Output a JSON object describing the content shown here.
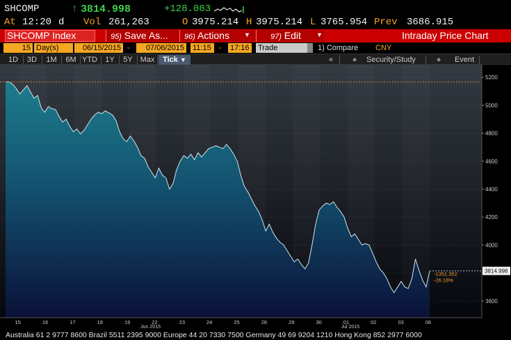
{
  "header": {
    "ticker": "SHCOMP",
    "arrow": "↑",
    "last": "3814.998",
    "change": "+128.083",
    "at_label": "At",
    "time": "12:20",
    "unit": "d",
    "vol_label": "Vol",
    "volume": "261,263",
    "open_label": "O",
    "open": "3975.214",
    "high_label": "H",
    "high": "3975.214",
    "low_label": "L",
    "low": "3765.954",
    "prev_label": "Prev",
    "prev": "3686.915"
  },
  "toolbar": {
    "security": "SHCOMP Index",
    "save_num": "95)",
    "save_label": "Save As...",
    "actions_num": "96)",
    "actions_label": "Actions",
    "edit_num": "97)",
    "edit_label": "Edit",
    "title": "Intraday Price Chart"
  },
  "params": {
    "period_count": "15",
    "period_unit": "Day(s)",
    "start_date": "06/15/2015",
    "dash": "-",
    "end_date": "07/06/2015",
    "start_time": "11:15",
    "end_time": "17:16",
    "market_field": "Trade",
    "compare_label": "1) Compare",
    "currency": "CNY"
  },
  "periods": {
    "items": [
      "1D",
      "3D",
      "1M",
      "6M",
      "YTD",
      "1Y",
      "5Y",
      "Max"
    ],
    "selected": "Tick",
    "collapse": "«",
    "security_study": "Security/Study",
    "event": "Event"
  },
  "colors": {
    "accent_red": "#cc0000",
    "accent_orange": "#f5a623",
    "area_top": "#1d7c8c",
    "area_bottom": "#0a1138",
    "price_tag": "#f2f2f2",
    "negative": "#ff9933"
  },
  "chart_data": {
    "type": "area",
    "y_ticks": [
      "5200",
      "5000",
      "4800",
      "4600",
      "4400",
      "4200",
      "4000",
      "3800",
      "3600"
    ],
    "ylim": [
      3480,
      5290
    ],
    "x_ticks": [
      "15",
      "16",
      "17",
      "18",
      "19",
      "22",
      "23",
      "24",
      "25",
      "26",
      "29",
      "30",
      "01",
      "02",
      "03",
      "06"
    ],
    "x_month_labels": [
      "Jun 2015",
      "Jul 2015"
    ],
    "reference_level": 5166,
    "last_price": "3814.998",
    "change_abs": "-1351.352",
    "change_pct": "-26.16%",
    "series": [
      {
        "values": [
          5166,
          5168,
          5150,
          5120,
          5080,
          5110,
          5140,
          5095,
          5050,
          5070,
          4980,
          4950,
          4990,
          4975,
          4970,
          4920,
          4880,
          4900,
          4850,
          4810,
          4830,
          4795,
          4820,
          4860,
          4900,
          4930,
          4950,
          4940,
          4960,
          4945,
          4930,
          4890,
          4810,
          4760,
          4740,
          4780,
          4745,
          4700,
          4640,
          4620,
          4560,
          4520,
          4480,
          4550,
          4500,
          4480,
          4400,
          4440,
          4540,
          4600,
          4640,
          4620,
          4650,
          4610,
          4660,
          4630,
          4660,
          4690,
          4700,
          4710,
          4700,
          4690,
          4720,
          4690,
          4650,
          4600,
          4500,
          4420,
          4380,
          4330,
          4280,
          4240,
          4180,
          4100,
          4150,
          4090,
          4050,
          4020,
          4000,
          3960,
          3920,
          3880,
          3900,
          3860,
          3830,
          3870,
          4000,
          4150,
          4250,
          4280,
          4300,
          4290,
          4310,
          4270,
          4240,
          4200,
          4120,
          4060,
          4080,
          4040,
          4000,
          4010,
          4000,
          3940,
          3880,
          3830,
          3800,
          3760,
          3700,
          3660,
          3700,
          3740,
          3700,
          3690,
          3760,
          3900,
          3820,
          3750,
          3700,
          3814.998
        ]
      }
    ]
  },
  "footer": {
    "text": "Australia 61 2 9777 8600 Brazil 5511 2395 9000 Europe 44 20 7330 7500 Germany 49 69 9204 1210 Hong Kong 852 2977 6000"
  }
}
